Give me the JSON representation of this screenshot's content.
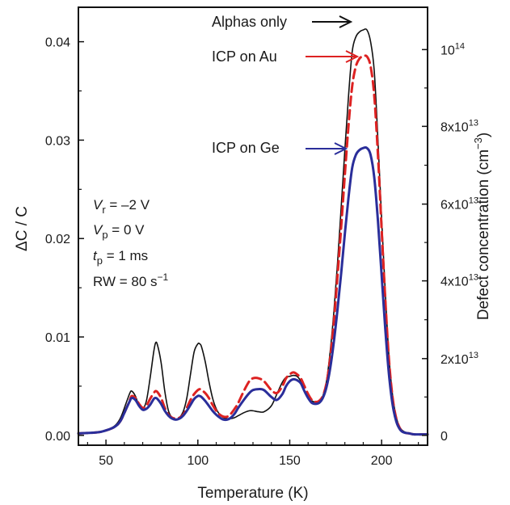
{
  "chart_data": {
    "type": "line",
    "xlabel": "Temperature (K)",
    "ylabel": "ΔC / C",
    "y2label": "Defect concentration (cm",
    "y2label_sup": "−3",
    "y2label_close": ")",
    "xlim": [
      35,
      225
    ],
    "ylim": [
      -0.001,
      0.0435
    ],
    "x_ticks": [
      "50",
      "100",
      "150",
      "200"
    ],
    "y_ticks": [
      "0.00",
      "0.01",
      "0.02",
      "0.03",
      "0.04"
    ],
    "y2_ticks": [
      {
        "value": 0,
        "mantissa": "0",
        "exp": ""
      },
      {
        "value": 0.0078,
        "mantissa": "2x10",
        "exp": "13"
      },
      {
        "value": 0.0157,
        "mantissa": "4x10",
        "exp": "13"
      },
      {
        "value": 0.0235,
        "mantissa": "6x10",
        "exp": "13"
      },
      {
        "value": 0.0314,
        "mantissa": "8x10",
        "exp": "13"
      },
      {
        "value": 0.0392,
        "mantissa": "10",
        "exp": "14"
      }
    ],
    "series": [
      {
        "name": "Alphas only",
        "color": "#111111",
        "style": "solid",
        "x": [
          35,
          45,
          50,
          55,
          58,
          61,
          63,
          64,
          66,
          68,
          70,
          72,
          74,
          76,
          77,
          78,
          80,
          82,
          84,
          86,
          88,
          90,
          92,
          94,
          96,
          98,
          100,
          101,
          102,
          104,
          106,
          108,
          110,
          112,
          114,
          116,
          118,
          120,
          122,
          125,
          128,
          130,
          133,
          136,
          140,
          143,
          146,
          148,
          150,
          152,
          154,
          156,
          158,
          160,
          162,
          164,
          166,
          168,
          170,
          172,
          174,
          176,
          178,
          180,
          182,
          184,
          186,
          188,
          190,
          192,
          194,
          196,
          198,
          200,
          202,
          204,
          206,
          208,
          210,
          212,
          215,
          218,
          225
        ],
        "y": [
          0.0002,
          0.0003,
          0.0005,
          0.001,
          0.0018,
          0.0033,
          0.0043,
          0.0045,
          0.004,
          0.003,
          0.0027,
          0.0035,
          0.0058,
          0.0085,
          0.0094,
          0.0092,
          0.0074,
          0.0045,
          0.0025,
          0.0018,
          0.0016,
          0.0018,
          0.0024,
          0.0038,
          0.0062,
          0.0085,
          0.0093,
          0.0093,
          0.009,
          0.0075,
          0.0055,
          0.0038,
          0.0027,
          0.0021,
          0.0018,
          0.0017,
          0.0017,
          0.0018,
          0.002,
          0.0023,
          0.0025,
          0.0025,
          0.0024,
          0.0024,
          0.003,
          0.0042,
          0.0054,
          0.0059,
          0.006,
          0.0061,
          0.006,
          0.0055,
          0.0046,
          0.0039,
          0.0035,
          0.0034,
          0.0035,
          0.004,
          0.0055,
          0.0085,
          0.0125,
          0.0175,
          0.0232,
          0.029,
          0.0345,
          0.039,
          0.0405,
          0.041,
          0.0412,
          0.0412,
          0.04,
          0.037,
          0.03,
          0.022,
          0.0145,
          0.008,
          0.004,
          0.0018,
          0.0008,
          0.0004,
          0.0002,
          0.0001,
          0.0001
        ]
      },
      {
        "name": "ICP on Au",
        "color": "#dd2222",
        "style": "dashed",
        "x": [
          35,
          45,
          50,
          55,
          58,
          61,
          63,
          64,
          66,
          68,
          70,
          72,
          74,
          76,
          77,
          78,
          80,
          82,
          84,
          86,
          88,
          90,
          92,
          94,
          96,
          98,
          100,
          101,
          102,
          104,
          106,
          108,
          110,
          112,
          114,
          116,
          118,
          120,
          122,
          125,
          128,
          130,
          133,
          136,
          140,
          143,
          146,
          148,
          150,
          152,
          154,
          156,
          158,
          160,
          162,
          164,
          166,
          168,
          170,
          172,
          174,
          176,
          178,
          180,
          182,
          184,
          186,
          188,
          190,
          192,
          194,
          196,
          198,
          200,
          202,
          204,
          206,
          208,
          210,
          212,
          215,
          218,
          225
        ],
        "y": [
          0.0002,
          0.0003,
          0.0005,
          0.0009,
          0.0015,
          0.0027,
          0.0036,
          0.004,
          0.0038,
          0.0032,
          0.0028,
          0.003,
          0.0037,
          0.0043,
          0.0045,
          0.0044,
          0.0038,
          0.0028,
          0.0021,
          0.0018,
          0.0017,
          0.0018,
          0.0021,
          0.0028,
          0.0036,
          0.0042,
          0.0046,
          0.0047,
          0.0046,
          0.0043,
          0.0038,
          0.0031,
          0.0025,
          0.0021,
          0.0019,
          0.0019,
          0.0022,
          0.0027,
          0.0033,
          0.0045,
          0.0055,
          0.0058,
          0.0058,
          0.0055,
          0.0046,
          0.0043,
          0.005,
          0.0058,
          0.0062,
          0.0064,
          0.0062,
          0.0058,
          0.005,
          0.0042,
          0.0036,
          0.0034,
          0.0035,
          0.004,
          0.0053,
          0.0078,
          0.0115,
          0.0162,
          0.0212,
          0.0265,
          0.0315,
          0.0355,
          0.0375,
          0.0383,
          0.0385,
          0.0385,
          0.0375,
          0.0345,
          0.0285,
          0.021,
          0.0138,
          0.0077,
          0.0038,
          0.0017,
          0.0007,
          0.0003,
          0.0002,
          0.0001,
          0.0001
        ]
      },
      {
        "name": "ICP on Ge",
        "color": "#2a2e9a",
        "style": "solid",
        "x": [
          35,
          45,
          50,
          55,
          58,
          61,
          63,
          64,
          66,
          68,
          70,
          72,
          74,
          76,
          77,
          78,
          80,
          82,
          84,
          86,
          88,
          90,
          92,
          94,
          96,
          98,
          100,
          101,
          102,
          104,
          106,
          108,
          110,
          112,
          114,
          116,
          118,
          120,
          122,
          125,
          128,
          130,
          133,
          136,
          140,
          143,
          146,
          148,
          150,
          152,
          154,
          156,
          158,
          160,
          162,
          164,
          166,
          168,
          170,
          172,
          174,
          176,
          178,
          180,
          182,
          184,
          186,
          188,
          190,
          192,
          194,
          196,
          198,
          200,
          202,
          204,
          206,
          208,
          210,
          212,
          215,
          218,
          225
        ],
        "y": [
          0.0002,
          0.0003,
          0.0005,
          0.0009,
          0.0015,
          0.0027,
          0.0035,
          0.0038,
          0.0036,
          0.003,
          0.0026,
          0.0027,
          0.0031,
          0.0037,
          0.0038,
          0.0037,
          0.0032,
          0.0025,
          0.002,
          0.0017,
          0.0016,
          0.0017,
          0.002,
          0.0025,
          0.0031,
          0.0037,
          0.004,
          0.004,
          0.0039,
          0.0035,
          0.003,
          0.0025,
          0.0021,
          0.0018,
          0.0016,
          0.0016,
          0.0018,
          0.0022,
          0.0028,
          0.0036,
          0.0043,
          0.0046,
          0.0047,
          0.0046,
          0.0039,
          0.0036,
          0.0042,
          0.005,
          0.0055,
          0.0057,
          0.0056,
          0.0053,
          0.0045,
          0.0038,
          0.0033,
          0.0032,
          0.0033,
          0.0038,
          0.0049,
          0.0068,
          0.0095,
          0.0128,
          0.0165,
          0.0205,
          0.0242,
          0.0272,
          0.0285,
          0.029,
          0.0292,
          0.0292,
          0.0285,
          0.0262,
          0.0218,
          0.0163,
          0.0108,
          0.0062,
          0.0031,
          0.0014,
          0.0006,
          0.0003,
          0.0002,
          0.0001,
          0.0001
        ]
      }
    ],
    "annotations": {
      "vr_symbol": "V",
      "vr_sub": "r",
      "vr_rest": " = –2 V",
      "vp_symbol": "V",
      "vp_sub": "p",
      "vp_rest": " = 0 V",
      "tp_symbol": "t",
      "tp_sub": "p",
      "tp_rest": " = 1 ms",
      "rw_text": "RW = 80 s",
      "rw_sup": "−1"
    }
  }
}
